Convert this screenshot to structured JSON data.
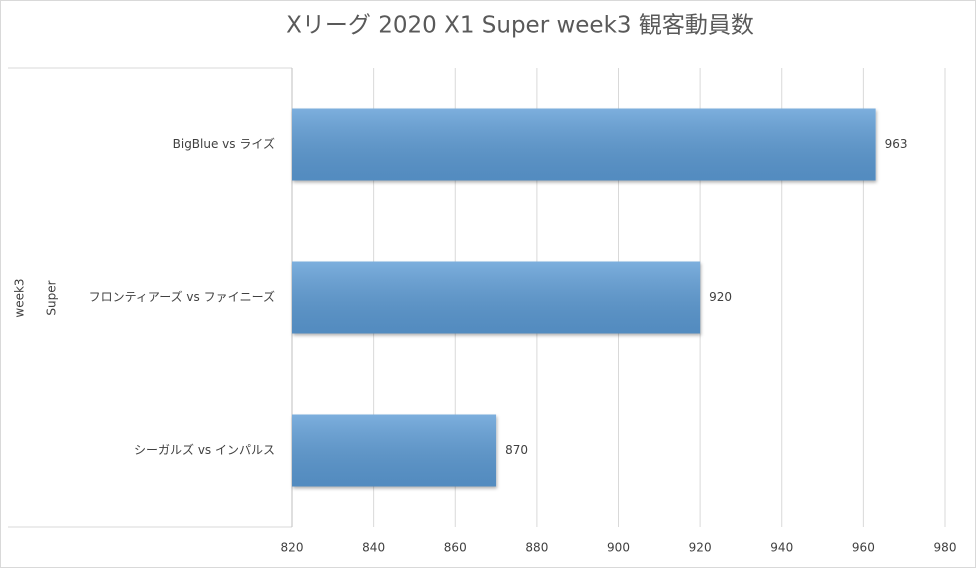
{
  "chart_data": {
    "type": "bar",
    "orientation": "horizontal",
    "title": "Xリーグ 2020 X1 Super week3 観客動員数",
    "category_groups": [
      "week3",
      "Super"
    ],
    "categories": [
      "BigBlue vs ライズ",
      "フロンティアーズ vs ファイニーズ",
      "シーガルズ vs インパルス"
    ],
    "values": [
      963,
      920,
      870
    ],
    "color": "#5b9bd5",
    "xlim": [
      820,
      980
    ],
    "xticks": [
      820,
      840,
      860,
      880,
      900,
      920,
      940,
      960,
      980
    ],
    "grid": true
  }
}
